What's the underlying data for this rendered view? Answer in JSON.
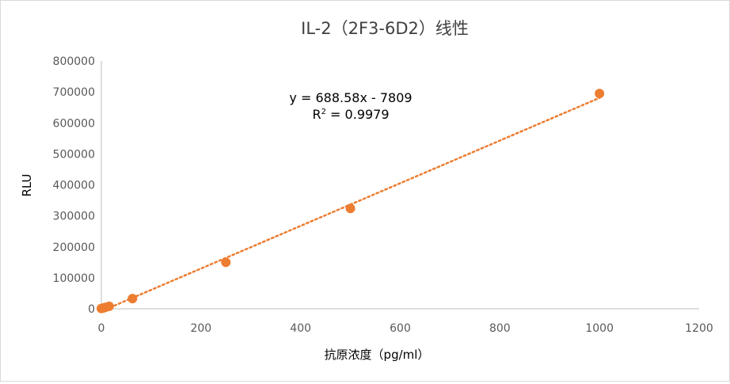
{
  "chart_data": {
    "type": "scatter",
    "title": "IL-2（2F3-6D2）线性",
    "xlabel": "抗原浓度（pg/ml）",
    "ylabel": "RLU",
    "xlim": [
      0,
      1200
    ],
    "ylim": [
      0,
      800000
    ],
    "x_ticks": [
      "0",
      "200",
      "400",
      "600",
      "800",
      "1000",
      "1200"
    ],
    "y_ticks": [
      "0",
      "100000",
      "200000",
      "300000",
      "400000",
      "500000",
      "600000",
      "700000",
      "800000"
    ],
    "grid": false,
    "legend": "none",
    "color": "#ED7D31",
    "series": [
      {
        "points": [
          {
            "x": 0,
            "y": 1000
          },
          {
            "x": 3.9,
            "y": 2500
          },
          {
            "x": 7.8,
            "y": 4500
          },
          {
            "x": 15.6,
            "y": 8000
          },
          {
            "x": 62.5,
            "y": 33000
          },
          {
            "x": 250,
            "y": 150000
          },
          {
            "x": 500,
            "y": 324000
          },
          {
            "x": 1000,
            "y": 695000
          }
        ]
      }
    ],
    "trendline": {
      "kind": "linear",
      "slope": 688.58,
      "intercept": -7809,
      "style": "dotted",
      "equation_text": "y = 688.58x - 7809",
      "r2_label": "R",
      "r2_sup": "2",
      "r2_value": " = 0.9979"
    }
  }
}
